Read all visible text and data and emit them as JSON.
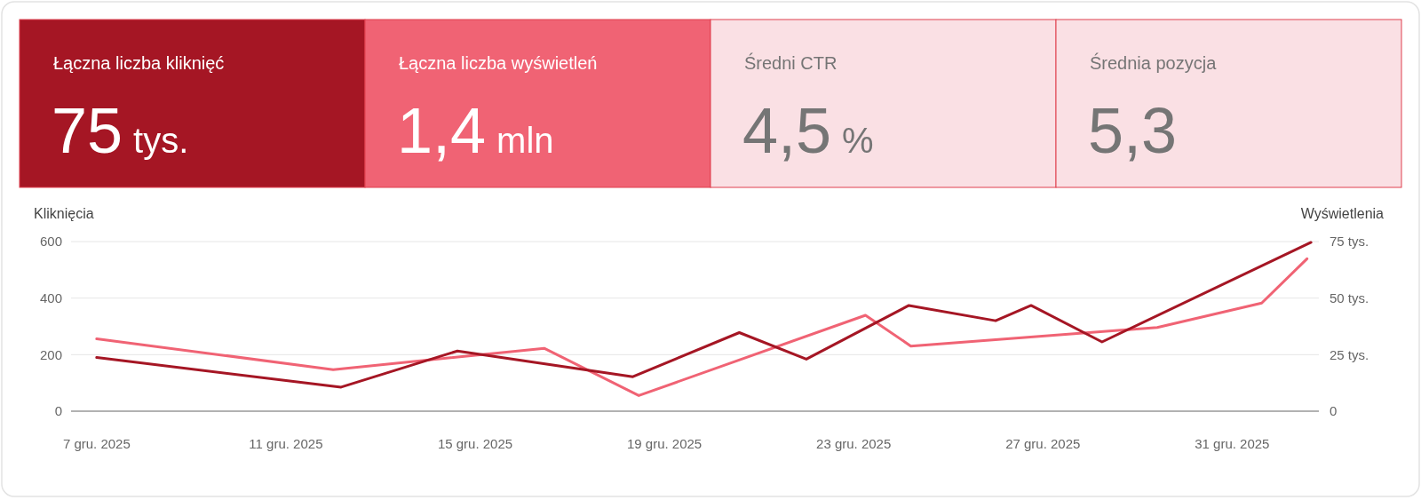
{
  "chart_data": [
    {
      "type": "other",
      "categories": [
        "Łączna liczba kliknięć",
        "Łączna liczba wyświetleń",
        "Średni CTR",
        "Średnia pozycja"
      ],
      "value_labels": [
        "75 tys.",
        "1,4 mln",
        "4,5 %",
        "5,3"
      ],
      "colors": [
        "#a51624",
        "#f06374",
        "#fae0e4",
        "#fae0e4"
      ]
    },
    {
      "type": "line",
      "ylabel": "Kliknięcia",
      "y2label": "Wyświetlenia",
      "xlim": [
        "2025-12-06T11:00",
        "2026-01-01T20:00"
      ],
      "xticks": [
        {
          "value": "2025-12-07",
          "label": "7 gru. 2025"
        },
        {
          "value": "2025-12-11",
          "label": "11 gru. 2025"
        },
        {
          "value": "2025-12-15",
          "label": "15 gru. 2025"
        },
        {
          "value": "2025-12-19",
          "label": "19 gru. 2025"
        },
        {
          "value": "2025-12-23",
          "label": "23 gru. 2025"
        },
        {
          "value": "2025-12-27",
          "label": "27 gru. 2025"
        },
        {
          "value": "2025-12-31",
          "label": "31 gru. 2025"
        }
      ],
      "ylim": [
        0,
        600
      ],
      "yticks": [
        0,
        200,
        400,
        600
      ],
      "y2lim": [
        0,
        75
      ],
      "y2ticks": [
        0,
        {
          "value": 25,
          "label": "25 tys."
        },
        {
          "value": 50,
          "label": "50 tys."
        },
        {
          "value": 75,
          "label": "75 tys."
        }
      ],
      "grid": "y",
      "marker": "none",
      "line_style": "solid",
      "series": [
        {
          "color": "#f06374",
          "axis": "y2",
          "x": [
            "2025-12-07",
            "2025-12-12",
            "2025-12-16T11:00",
            "2025-12-18T11:00",
            "2025-12-23T06:00",
            "2025-12-24T05:00",
            "2025-12-29T10:00",
            "2025-12-31T15:00",
            "2026-01-01T14:00"
          ],
          "values": [
            32.0,
            18.4,
            27.8,
            6.9,
            42.4,
            28.8,
            37.0,
            47.8,
            67.4
          ]
        },
        {
          "color": "#a51624",
          "x": [
            "2025-12-07",
            "2025-12-12T04:00",
            "2025-12-14T15:00",
            "2025-12-18T08:00",
            "2025-12-20T14:00",
            "2025-12-22",
            "2025-12-24T04:00",
            "2025-12-26",
            "2025-12-26T18:00",
            "2025-12-28T06:00",
            "2026-01-01T16:00"
          ],
          "values": [
            190,
            85,
            213,
            122,
            278,
            184,
            374,
            320,
            374,
            245,
            597
          ]
        }
      ]
    }
  ]
}
